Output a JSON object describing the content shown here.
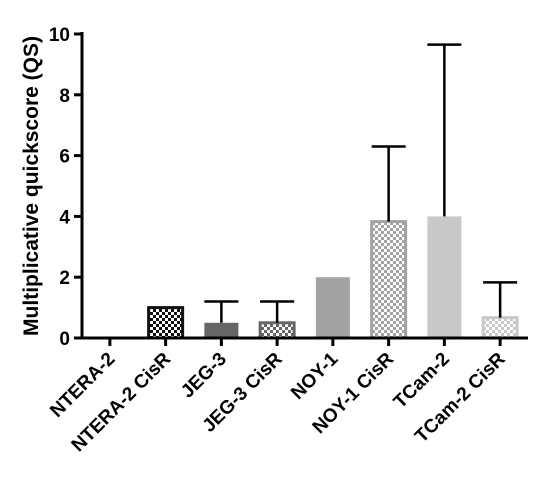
{
  "chart_data": {
    "type": "bar",
    "title": "",
    "xlabel": "",
    "ylabel": "Multiplicative quickscore (QS)",
    "ylim": [
      0,
      10
    ],
    "yticks": [
      0,
      2,
      4,
      6,
      8,
      10
    ],
    "grid": false,
    "categories": [
      "NTERA-2",
      "NTERA-2 CisR",
      "JEG-3",
      "JEG-3 CisR",
      "NOY-1",
      "NOY-1 CisR",
      "TCam-2",
      "TCam-2 CisR"
    ],
    "values": [
      0,
      1.0,
      0.5,
      0.5,
      2.0,
      3.83,
      4.0,
      0.67
    ],
    "errors": [
      0,
      0,
      0.7,
      0.7,
      0,
      2.47,
      5.65,
      1.16
    ],
    "styles": [
      {
        "fill": "#111111",
        "pattern": "none"
      },
      {
        "fill": "#111111",
        "pattern": "checker-dark"
      },
      {
        "fill": "#666666",
        "pattern": "none"
      },
      {
        "fill": "#666666",
        "pattern": "checker-mid"
      },
      {
        "fill": "#a3a3a3",
        "pattern": "none"
      },
      {
        "fill": "#a3a3a3",
        "pattern": "checker-light"
      },
      {
        "fill": "#c8c8c8",
        "pattern": "none"
      },
      {
        "fill": "#c8c8c8",
        "pattern": "checker-pale"
      }
    ]
  }
}
